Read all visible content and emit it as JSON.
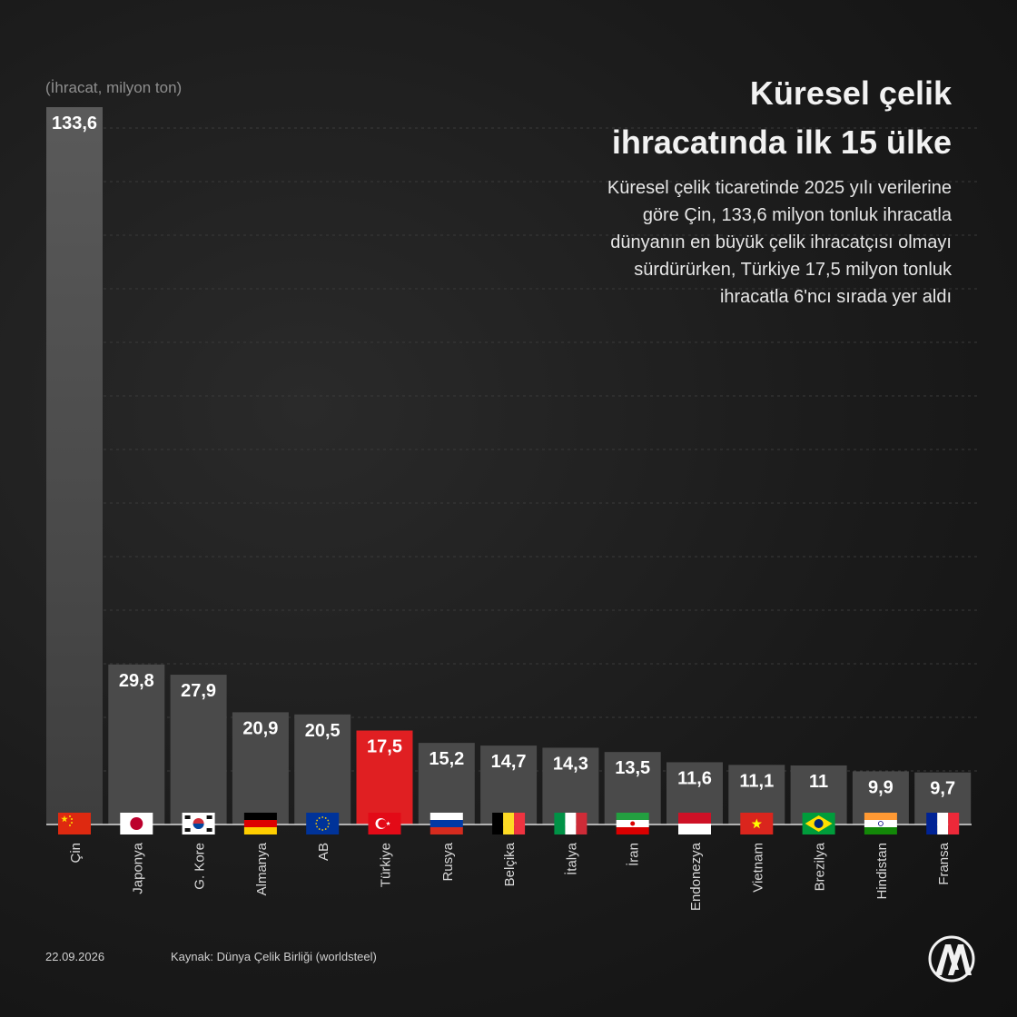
{
  "header": {
    "unit": "(İhracat, milyon ton)",
    "title_line1": "Küresel çelik",
    "title_line2": "ihracatında ilk 15 ülke",
    "subtitle_lines": [
      "Küresel çelik ticaretinde 2025 yılı verilerine",
      "göre Çin, 133,6 milyon tonluk ihracatla",
      "dünyanın en büyük çelik ihracatçısı olmayı",
      "sürdürürken, Türkiye 17,5 milyon tonluk",
      "ihracatla 6'ncı sırada yer aldı"
    ]
  },
  "chart_data": {
    "type": "bar",
    "categories": [
      "Çin",
      "Japonya",
      "G. Kore",
      "Almanya",
      "AB",
      "Türkiye",
      "Rusya",
      "Belçika",
      "İtalya",
      "İran",
      "Endonezya",
      "Vietnam",
      "Brezilya",
      "Hindistan",
      "Fransa"
    ],
    "values": [
      133.6,
      29.8,
      27.9,
      20.9,
      20.5,
      17.5,
      15.2,
      14.7,
      14.3,
      13.5,
      11.6,
      11.1,
      11,
      9.9,
      9.7
    ],
    "value_labels": [
      "133,6",
      "29,8",
      "27,9",
      "20,9",
      "20,5",
      "17,5",
      "15,2",
      "14,7",
      "14,3",
      "13,5",
      "11,6",
      "11,1",
      "11",
      "9,9",
      "9,7"
    ],
    "ylim": [
      0,
      133.6
    ],
    "grid": true,
    "highlight": "Türkiye",
    "bar_color": "#4a4a4a",
    "highlight_color": "#e01f22"
  },
  "flags": [
    "china-flag-icon",
    "japan-flag-icon",
    "south-korea-flag-icon",
    "germany-flag-icon",
    "eu-flag-icon",
    "turkey-flag-icon",
    "russia-flag-icon",
    "belgium-flag-icon",
    "italy-flag-icon",
    "iran-flag-icon",
    "indonesia-flag-icon",
    "vietnam-flag-icon",
    "brazil-flag-icon",
    "india-flag-icon",
    "france-flag-icon"
  ],
  "footer": {
    "date": "22.09.2026",
    "source": "Kaynak: Dünya Çelik Birliği (worldsteel)"
  },
  "logo": "aa-logo-icon"
}
